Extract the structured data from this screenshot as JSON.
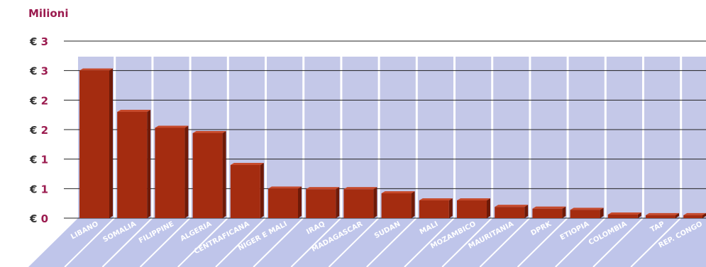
{
  "chart_data": {
    "type": "bar",
    "title": "",
    "ylabel": "Milioni",
    "xlabel": "",
    "ytick_labels": [
      {
        "value": 0.0,
        "currency": "€",
        "text": "0"
      },
      {
        "value": 0.5,
        "currency": "€",
        "text": "1"
      },
      {
        "value": 1.0,
        "currency": "€",
        "text": "1"
      },
      {
        "value": 1.5,
        "currency": "€",
        "text": "2"
      },
      {
        "value": 2.0,
        "currency": "€",
        "text": "2"
      },
      {
        "value": 2.5,
        "currency": "€",
        "text": "3"
      },
      {
        "value": 3.0,
        "currency": "€",
        "text": "3"
      }
    ],
    "ylim": [
      0,
      3.0
    ],
    "categories": [
      "LIBANO",
      "SOMALIA",
      "FILIPPINE",
      "ALGERIA",
      "CENTRAFICANA",
      "NIGER E MALI",
      "IRAQ",
      "MADAGASCAR",
      "SUDAN",
      "MALI",
      "MOZAMBICO",
      "MAURITANIA",
      "DPRK",
      "ETIOPIA",
      "COLOMBIA",
      "TAP",
      "REP. CONGO"
    ],
    "values": [
      2.5,
      1.8,
      1.53,
      1.44,
      0.9,
      0.5,
      0.49,
      0.49,
      0.42,
      0.3,
      0.3,
      0.19,
      0.16,
      0.14,
      0.06,
      0.05,
      0.05
    ],
    "grid": true,
    "legend": "none",
    "colors": {
      "bar": "#a42c10",
      "bar_side": "#6e1a08",
      "bar_top": "#c64a2c",
      "panel": "#c4c8e8",
      "floor": "#bfc5ea",
      "label_text": "#ffffff",
      "axis_text": "#9b1b4f",
      "euro_text": "#333333",
      "grid": "#222222"
    }
  }
}
